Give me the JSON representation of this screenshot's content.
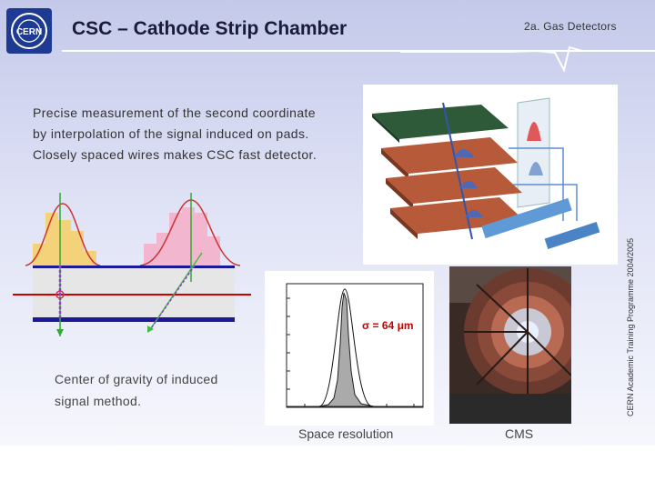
{
  "header": {
    "title": "CSC – Cathode Strip Chamber",
    "section": "2a.  Gas Detectors",
    "logo_text": "CERN"
  },
  "body": {
    "lines": [
      "Precise measurement of the second coordinate",
      "by interpolation of the signal induced on pads.",
      "Closely spaced wires makes CSC fast detector."
    ]
  },
  "side_text": "CERN Academic Training Programme 2004/2005",
  "cog": {
    "caption_lines": [
      "Center of gravity of induced",
      "signal method."
    ]
  },
  "plot": {
    "sigma_label": "σ = 64 μm",
    "caption": "Space resolution"
  },
  "cms": {
    "caption": "CMS"
  },
  "colors": {
    "title_text": "#1a1a3a",
    "accent_red": "#cc0000",
    "logo_blue": "#1f3a93"
  }
}
